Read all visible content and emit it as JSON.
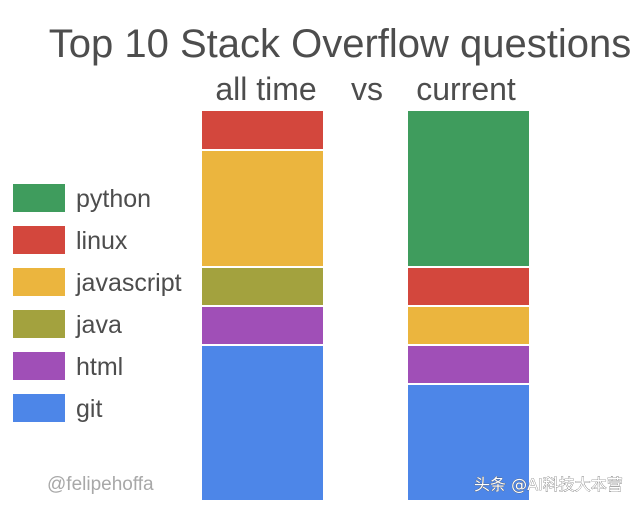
{
  "chart_data": {
    "type": "bar",
    "stacked": true,
    "normalized": true,
    "title": "Top 10 Stack Overflow questions",
    "categories": [
      "all time",
      "current"
    ],
    "category_separator": "vs",
    "series": [
      {
        "name": "python",
        "color": "#3f9c5d",
        "values": [
          0,
          0.4
        ]
      },
      {
        "name": "linux",
        "color": "#d3473d",
        "values": [
          0.1,
          0.1
        ]
      },
      {
        "name": "javascript",
        "color": "#ebb53e",
        "values": [
          0.3,
          0.1
        ]
      },
      {
        "name": "java",
        "color": "#a3a23e",
        "values": [
          0.1,
          0
        ]
      },
      {
        "name": "html",
        "color": "#a04fb7",
        "values": [
          0.1,
          0.1
        ]
      },
      {
        "name": "git",
        "color": "#4d86e8",
        "values": [
          0.4,
          0.3
        ]
      }
    ],
    "legend_position": "left",
    "grid": false
  },
  "credit": "@felipehoffa",
  "watermark": "头条 @AI科技大本营"
}
